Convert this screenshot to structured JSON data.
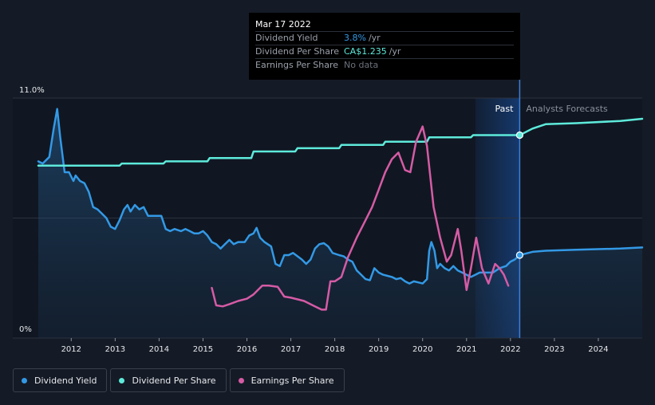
{
  "tooltip": {
    "date": "Mar 17 2022",
    "rows": [
      {
        "label": "Dividend Yield",
        "value": "3.8%",
        "unit": "/yr"
      },
      {
        "label": "Dividend Per Share",
        "value": "CA$1.235",
        "unit": "/yr"
      },
      {
        "label": "Earnings Per Share",
        "value": "No data",
        "unit": ""
      }
    ]
  },
  "legend": [
    {
      "label": "Dividend Yield"
    },
    {
      "label": "Dividend Per Share"
    },
    {
      "label": "Earnings Per Share"
    }
  ],
  "chart_data": {
    "type": "line",
    "x_ticks": [
      "2012",
      "2013",
      "2014",
      "2015",
      "2016",
      "2017",
      "2018",
      "2019",
      "2020",
      "2021",
      "2022",
      "2023",
      "2024"
    ],
    "y_ticks": [
      "11.0%",
      "0%"
    ],
    "xlim": [
      2011.25,
      2025.0
    ],
    "ylim": [
      0,
      11.0
    ],
    "annotations": {
      "past": "Past",
      "forecast": "Analysts Forecasts"
    },
    "highlight_range": [
      2021.2,
      2022.21
    ],
    "divider_x": 2022.21,
    "series": [
      {
        "name": "Dividend Yield",
        "color": "#3399e6",
        "points": [
          [
            2011.25,
            8.1
          ],
          [
            2011.35,
            8.0
          ],
          [
            2011.5,
            8.3
          ],
          [
            2011.6,
            9.6
          ],
          [
            2011.68,
            10.5
          ],
          [
            2011.75,
            9.2
          ],
          [
            2011.85,
            7.6
          ],
          [
            2011.95,
            7.6
          ],
          [
            2012.05,
            7.2
          ],
          [
            2012.1,
            7.45
          ],
          [
            2012.2,
            7.2
          ],
          [
            2012.3,
            7.1
          ],
          [
            2012.4,
            6.7
          ],
          [
            2012.5,
            6.0
          ],
          [
            2012.6,
            5.9
          ],
          [
            2012.7,
            5.7
          ],
          [
            2012.8,
            5.5
          ],
          [
            2012.9,
            5.1
          ],
          [
            2013.0,
            5.0
          ],
          [
            2013.1,
            5.4
          ],
          [
            2013.2,
            5.9
          ],
          [
            2013.28,
            6.1
          ],
          [
            2013.35,
            5.8
          ],
          [
            2013.45,
            6.1
          ],
          [
            2013.55,
            5.9
          ],
          [
            2013.65,
            6.0
          ],
          [
            2013.75,
            5.6
          ],
          [
            2013.85,
            5.6
          ],
          [
            2014.0,
            5.6
          ],
          [
            2014.05,
            5.6
          ],
          [
            2014.15,
            5.0
          ],
          [
            2014.25,
            4.9
          ],
          [
            2014.35,
            5.0
          ],
          [
            2014.5,
            4.9
          ],
          [
            2014.6,
            5.0
          ],
          [
            2014.7,
            4.9
          ],
          [
            2014.8,
            4.8
          ],
          [
            2014.9,
            4.8
          ],
          [
            2015.0,
            4.9
          ],
          [
            2015.1,
            4.7
          ],
          [
            2015.2,
            4.4
          ],
          [
            2015.3,
            4.3
          ],
          [
            2015.4,
            4.1
          ],
          [
            2015.5,
            4.3
          ],
          [
            2015.6,
            4.5
          ],
          [
            2015.7,
            4.3
          ],
          [
            2015.8,
            4.4
          ],
          [
            2015.95,
            4.4
          ],
          [
            2016.05,
            4.7
          ],
          [
            2016.15,
            4.8
          ],
          [
            2016.22,
            5.05
          ],
          [
            2016.3,
            4.6
          ],
          [
            2016.4,
            4.4
          ],
          [
            2016.55,
            4.2
          ],
          [
            2016.65,
            3.4
          ],
          [
            2016.75,
            3.3
          ],
          [
            2016.85,
            3.8
          ],
          [
            2016.95,
            3.8
          ],
          [
            2017.05,
            3.9
          ],
          [
            2017.15,
            3.75
          ],
          [
            2017.25,
            3.6
          ],
          [
            2017.35,
            3.4
          ],
          [
            2017.45,
            3.6
          ],
          [
            2017.55,
            4.1
          ],
          [
            2017.65,
            4.3
          ],
          [
            2017.75,
            4.35
          ],
          [
            2017.85,
            4.2
          ],
          [
            2017.95,
            3.9
          ],
          [
            2018.1,
            3.8
          ],
          [
            2018.2,
            3.75
          ],
          [
            2018.3,
            3.6
          ],
          [
            2018.4,
            3.5
          ],
          [
            2018.5,
            3.1
          ],
          [
            2018.6,
            2.9
          ],
          [
            2018.7,
            2.7
          ],
          [
            2018.8,
            2.65
          ],
          [
            2018.9,
            3.2
          ],
          [
            2019.0,
            3.0
          ],
          [
            2019.1,
            2.9
          ],
          [
            2019.2,
            2.85
          ],
          [
            2019.3,
            2.8
          ],
          [
            2019.4,
            2.7
          ],
          [
            2019.5,
            2.75
          ],
          [
            2019.6,
            2.6
          ],
          [
            2019.7,
            2.5
          ],
          [
            2019.8,
            2.6
          ],
          [
            2019.9,
            2.55
          ],
          [
            2020.0,
            2.5
          ],
          [
            2020.1,
            2.7
          ],
          [
            2020.15,
            4.0
          ],
          [
            2020.2,
            4.4
          ],
          [
            2020.27,
            4.0
          ],
          [
            2020.33,
            3.2
          ],
          [
            2020.4,
            3.4
          ],
          [
            2020.5,
            3.2
          ],
          [
            2020.6,
            3.1
          ],
          [
            2020.7,
            3.3
          ],
          [
            2020.8,
            3.1
          ],
          [
            2020.9,
            3.0
          ],
          [
            2021.0,
            2.9
          ],
          [
            2021.1,
            2.8
          ],
          [
            2021.2,
            2.9
          ],
          [
            2021.3,
            3.0
          ],
          [
            2021.45,
            3.0
          ],
          [
            2021.6,
            3.0
          ],
          [
            2021.75,
            3.2
          ],
          [
            2021.9,
            3.3
          ],
          [
            2022.0,
            3.5
          ],
          [
            2022.1,
            3.6
          ],
          [
            2022.21,
            3.8
          ],
          [
            2022.5,
            3.95
          ],
          [
            2022.8,
            4.0
          ],
          [
            2023.5,
            4.05
          ],
          [
            2024.5,
            4.1
          ],
          [
            2025.0,
            4.15
          ]
        ]
      },
      {
        "name": "Dividend Per Share",
        "color": "#5eeadb",
        "points": [
          [
            2011.25,
            7.9
          ],
          [
            2012.3,
            7.9
          ],
          [
            2013.1,
            7.9
          ],
          [
            2013.15,
            8.0
          ],
          [
            2014.1,
            8.0
          ],
          [
            2014.15,
            8.1
          ],
          [
            2015.1,
            8.1
          ],
          [
            2015.15,
            8.25
          ],
          [
            2016.1,
            8.25
          ],
          [
            2016.15,
            8.55
          ],
          [
            2017.1,
            8.55
          ],
          [
            2017.15,
            8.7
          ],
          [
            2018.1,
            8.7
          ],
          [
            2018.15,
            8.85
          ],
          [
            2019.1,
            8.85
          ],
          [
            2019.15,
            9.0
          ],
          [
            2020.1,
            9.0
          ],
          [
            2020.15,
            9.2
          ],
          [
            2021.1,
            9.2
          ],
          [
            2021.15,
            9.3
          ],
          [
            2022.21,
            9.3
          ],
          [
            2022.5,
            9.6
          ],
          [
            2022.8,
            9.8
          ],
          [
            2023.5,
            9.85
          ],
          [
            2024.5,
            9.95
          ],
          [
            2025.0,
            10.05
          ]
        ]
      },
      {
        "name": "Earnings Per Share",
        "color": "#d65ba5",
        "points": [
          [
            2015.2,
            2.3
          ],
          [
            2015.3,
            1.5
          ],
          [
            2015.45,
            1.45
          ],
          [
            2015.6,
            1.55
          ],
          [
            2015.8,
            1.7
          ],
          [
            2016.0,
            1.8
          ],
          [
            2016.15,
            2.0
          ],
          [
            2016.35,
            2.4
          ],
          [
            2016.5,
            2.4
          ],
          [
            2016.7,
            2.35
          ],
          [
            2016.85,
            1.9
          ],
          [
            2017.0,
            1.85
          ],
          [
            2017.3,
            1.7
          ],
          [
            2017.5,
            1.5
          ],
          [
            2017.7,
            1.3
          ],
          [
            2017.8,
            1.3
          ],
          [
            2017.9,
            2.6
          ],
          [
            2018.0,
            2.6
          ],
          [
            2018.15,
            2.8
          ],
          [
            2018.3,
            3.7
          ],
          [
            2018.5,
            4.6
          ],
          [
            2018.7,
            5.4
          ],
          [
            2018.85,
            6.0
          ],
          [
            2019.0,
            6.8
          ],
          [
            2019.15,
            7.6
          ],
          [
            2019.3,
            8.2
          ],
          [
            2019.45,
            8.5
          ],
          [
            2019.6,
            7.7
          ],
          [
            2019.72,
            7.6
          ],
          [
            2019.85,
            9.0
          ],
          [
            2020.0,
            9.7
          ],
          [
            2020.1,
            8.8
          ],
          [
            2020.25,
            6.0
          ],
          [
            2020.4,
            4.6
          ],
          [
            2020.55,
            3.5
          ],
          [
            2020.65,
            3.8
          ],
          [
            2020.8,
            5.0
          ],
          [
            2020.88,
            4.0
          ],
          [
            2021.0,
            2.2
          ],
          [
            2021.1,
            3.2
          ],
          [
            2021.22,
            4.6
          ],
          [
            2021.35,
            3.2
          ],
          [
            2021.5,
            2.5
          ],
          [
            2021.65,
            3.4
          ],
          [
            2021.75,
            3.2
          ],
          [
            2021.85,
            2.9
          ],
          [
            2021.95,
            2.4
          ]
        ]
      }
    ]
  }
}
